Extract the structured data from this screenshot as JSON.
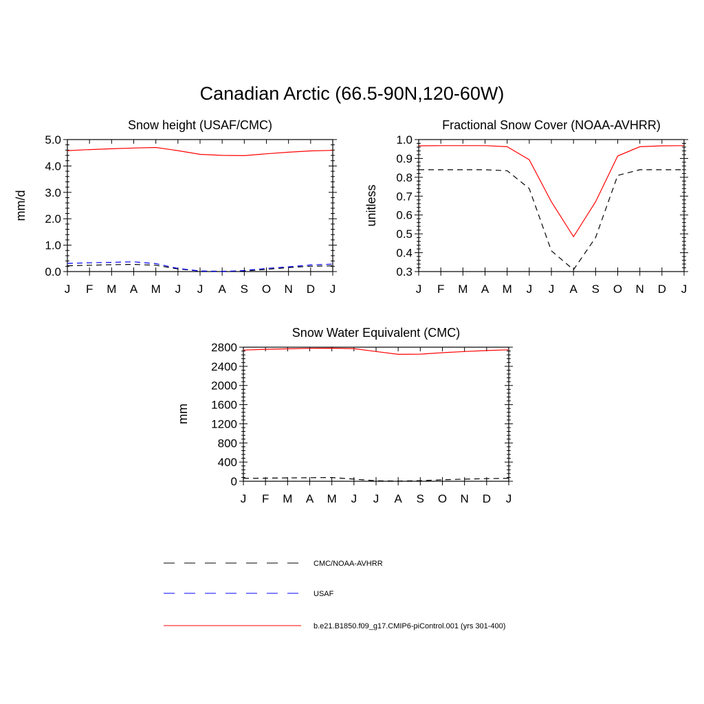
{
  "page": {
    "title": "Canadian Arctic (66.5-90N,120-60W)"
  },
  "legend": [
    {
      "label": "CMC/NOAA-AVHRR",
      "color": "#000000",
      "dash": true
    },
    {
      "label": "USAF",
      "color": "#0000ff",
      "dash": true
    },
    {
      "label": "b.e21.B1850.f09_g17.CMIP6-piControl.001 (yrs 301-400)",
      "color": "#ff0000",
      "dash": false
    }
  ],
  "chart_data": [
    {
      "type": "line",
      "title": "Snow height (USAF/CMC)",
      "ylabel": "mm/d",
      "categories": [
        "J",
        "F",
        "M",
        "A",
        "M",
        "J",
        "J",
        "A",
        "S",
        "O",
        "N",
        "D",
        "J"
      ],
      "ylim": [
        0,
        5
      ],
      "yticks": [
        "0.0",
        "1.0",
        "2.0",
        "3.0",
        "4.0",
        "5.0"
      ],
      "yticks_values": [
        0,
        1,
        2,
        3,
        4,
        5
      ],
      "grid": false,
      "series": [
        {
          "name": "CMC/NOAA-AVHRR",
          "color": "#000000",
          "dash": true,
          "values": [
            0.22,
            0.24,
            0.26,
            0.27,
            0.24,
            0.1,
            0.02,
            0.01,
            0.02,
            0.08,
            0.15,
            0.2,
            0.22
          ]
        },
        {
          "name": "USAF",
          "color": "#0000ff",
          "dash": true,
          "values": [
            0.31,
            0.33,
            0.35,
            0.37,
            0.3,
            0.12,
            0.02,
            0.0,
            0.04,
            0.12,
            0.18,
            0.25,
            0.28
          ]
        },
        {
          "name": "b.e21.B1850.f09_g17.CMIP6-piControl.001 (yrs 301-400)",
          "color": "#ff0000",
          "dash": false,
          "values": [
            4.58,
            4.62,
            4.65,
            4.68,
            4.7,
            4.58,
            4.44,
            4.4,
            4.39,
            4.46,
            4.52,
            4.57,
            4.59
          ]
        }
      ]
    },
    {
      "type": "line",
      "title": "Fractional Snow Cover (NOAA-AVHRR)",
      "ylabel": "unitless",
      "categories": [
        "J",
        "F",
        "M",
        "A",
        "M",
        "J",
        "J",
        "A",
        "S",
        "O",
        "N",
        "D",
        "J"
      ],
      "ylim": [
        0.3,
        1.0
      ],
      "yticks": [
        "0.3",
        "0.4",
        "0.5",
        "0.6",
        "0.7",
        "0.8",
        "0.9",
        "1.0"
      ],
      "yticks_values": [
        0.3,
        0.4,
        0.5,
        0.6,
        0.7,
        0.8,
        0.9,
        1.0
      ],
      "grid": false,
      "series": [
        {
          "name": "CMC/NOAA-AVHRR",
          "color": "#000000",
          "dash": true,
          "values": [
            0.84,
            0.84,
            0.84,
            0.84,
            0.835,
            0.74,
            0.41,
            0.31,
            0.48,
            0.81,
            0.84,
            0.84,
            0.84
          ]
        },
        {
          "name": "b.e21.B1850.f09_g17.CMIP6-piControl.001 (yrs 301-400)",
          "color": "#ff0000",
          "dash": false,
          "values": [
            0.967,
            0.968,
            0.968,
            0.968,
            0.962,
            0.893,
            0.67,
            0.485,
            0.67,
            0.913,
            0.962,
            0.967,
            0.968
          ]
        }
      ]
    },
    {
      "type": "line",
      "title": "Snow Water Equivalent (CMC)",
      "ylabel": "mm",
      "categories": [
        "J",
        "F",
        "M",
        "A",
        "M",
        "J",
        "J",
        "A",
        "S",
        "O",
        "N",
        "D",
        "J"
      ],
      "ylim": [
        0,
        2800
      ],
      "yticks": [
        "0",
        "400",
        "800",
        "1200",
        "1600",
        "2000",
        "2400",
        "2800"
      ],
      "yticks_values": [
        0,
        400,
        800,
        1200,
        1600,
        2000,
        2400,
        2800
      ],
      "grid": false,
      "series": [
        {
          "name": "CMC/NOAA-AVHRR",
          "color": "#000000",
          "dash": true,
          "values": [
            60,
            65,
            70,
            75,
            78,
            45,
            10,
            4,
            12,
            30,
            45,
            55,
            60
          ]
        },
        {
          "name": "b.e21.B1850.f09_g17.CMIP6-piControl.001 (yrs 301-400)",
          "color": "#ff0000",
          "dash": false,
          "values": [
            2740,
            2755,
            2765,
            2775,
            2778,
            2770,
            2710,
            2650,
            2655,
            2685,
            2710,
            2730,
            2745
          ]
        }
      ]
    }
  ]
}
